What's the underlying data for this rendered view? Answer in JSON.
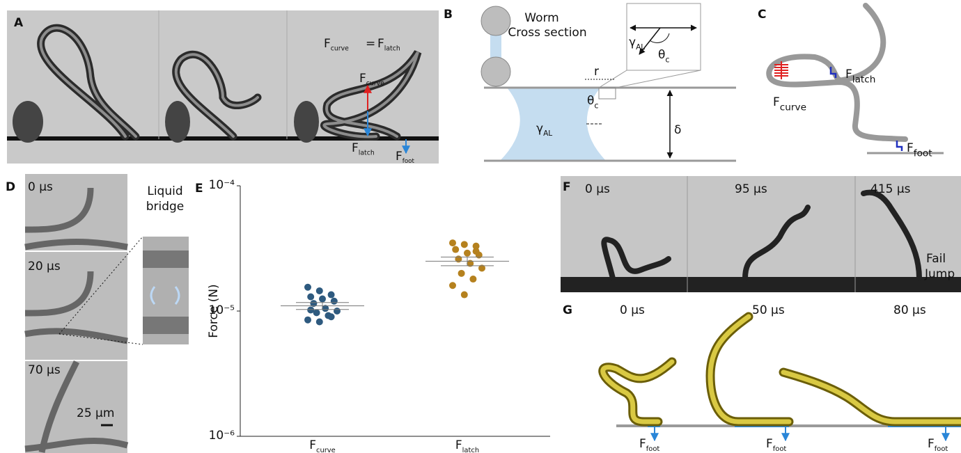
{
  "panels": {
    "A": {
      "label": "A",
      "equation": {
        "left": {
          "main": "F",
          "sub": "curve"
        },
        "sign": "=",
        "right": {
          "main": "F",
          "sub": "latch"
        }
      },
      "up_force": {
        "main": "F",
        "sub": "curve"
      },
      "down_force": {
        "main": "F",
        "sub": "latch"
      },
      "foot_force": {
        "main": "F",
        "sub": "foot"
      }
    },
    "B": {
      "label": "B",
      "title_lines": [
        "Worm",
        "Cross section"
      ],
      "radius": "r",
      "tension": {
        "main": "γ",
        "sub": "AL"
      },
      "angle": {
        "main": "θ",
        "sub": "c"
      },
      "gap": "δ"
    },
    "C": {
      "label": "C",
      "latch": {
        "main": "F",
        "sub": "latch"
      },
      "curve": {
        "main": "F",
        "sub": "curve"
      },
      "foot": {
        "main": "F",
        "sub": "foot"
      }
    },
    "D": {
      "label": "D",
      "times": [
        "0 μs",
        "20 μs",
        "70 μs"
      ],
      "scale_bar": "25 μm",
      "inset_title": [
        "Liquid",
        "bridge"
      ]
    },
    "E": {
      "label": "E"
    },
    "F": {
      "label": "F",
      "times": [
        "0 μs",
        "95 μs",
        "415 μs"
      ],
      "note": [
        "Fail",
        "Jump"
      ]
    },
    "G": {
      "label": "G",
      "times": [
        "0 μs",
        "50 μs",
        "80 μs"
      ],
      "foot": [
        {
          "main": "F",
          "sub": "foot"
        },
        {
          "main": "F",
          "sub": "foot"
        },
        {
          "main": "F",
          "sub": "foot"
        }
      ]
    }
  },
  "chart_data": {
    "type": "strip",
    "y_label": "Force (N)",
    "log_y": true,
    "grid": false,
    "categories": [
      {
        "main": "F",
        "sub": "curve"
      },
      {
        "main": "F",
        "sub": "latch"
      }
    ],
    "ylim": [
      1e-06,
      0.0001
    ],
    "yticks": [
      {
        "value": 1e-06,
        "label": "10⁻⁶"
      },
      {
        "value": 1e-05,
        "label": "10⁻⁵"
      },
      {
        "value": 0.0001,
        "label": "10⁻⁴"
      }
    ],
    "series": [
      {
        "color": "#2e5a7f",
        "values": [
          1.55e-05,
          1.45e-05,
          1.35e-05,
          1.3e-05,
          1.25e-05,
          1.2e-05,
          1.15e-05,
          1.05e-05,
          1e-05,
          9.7e-06,
          9.2e-06,
          8.5e-06,
          8.2e-06,
          9e-06,
          1.02e-05
        ],
        "mean": 1.1e-05,
        "error": 7e-07
      },
      {
        "color": "#b5811e",
        "values": [
          3.5e-05,
          3.4e-05,
          3.3e-05,
          3.1e-05,
          2.9e-05,
          2.8e-05,
          2.6e-05,
          2.4e-05,
          2.2e-05,
          2e-05,
          1.8e-05,
          1.6e-05,
          1.35e-05,
          3e-05
        ],
        "mean": 2.5e-05,
        "error": 2e-06
      }
    ]
  }
}
